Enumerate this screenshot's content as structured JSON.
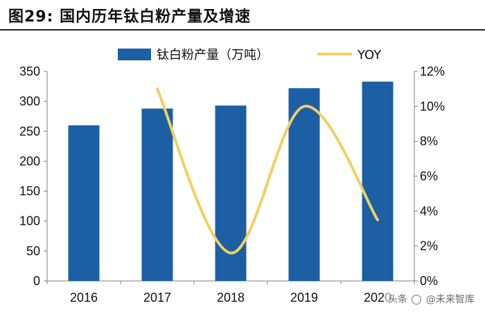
{
  "header": {
    "title": "图29:  国内历年钛白粉产量及增速"
  },
  "watermark": {
    "prefix": "头条",
    "handle": "@未来智库"
  },
  "colors": {
    "bar": "#1d5fa4",
    "line": "#f0d060",
    "axis": "#7f7f7f"
  },
  "chart_data": {
    "type": "bar+line",
    "categories": [
      "2016",
      "2017",
      "2018",
      "2019",
      "2020"
    ],
    "series": [
      {
        "name": "钛白粉产量（万吨）",
        "type": "bar",
        "axis": "left",
        "values": [
          260,
          288,
          293,
          322,
          333
        ]
      },
      {
        "name": "YOY",
        "type": "line",
        "axis": "right",
        "smooth": true,
        "values": [
          null,
          11.0,
          1.6,
          10.0,
          3.5
        ]
      }
    ],
    "y_left": {
      "min": 0,
      "max": 350,
      "step": 50,
      "ticks": [
        "0",
        "50",
        "100",
        "150",
        "200",
        "250",
        "300",
        "350"
      ]
    },
    "y_right": {
      "min": 0,
      "max": 12,
      "step": 2,
      "ticks": [
        "0%",
        "2%",
        "4%",
        "6%",
        "8%",
        "10%",
        "12%"
      ]
    },
    "legend_position": "top",
    "grid": false
  }
}
